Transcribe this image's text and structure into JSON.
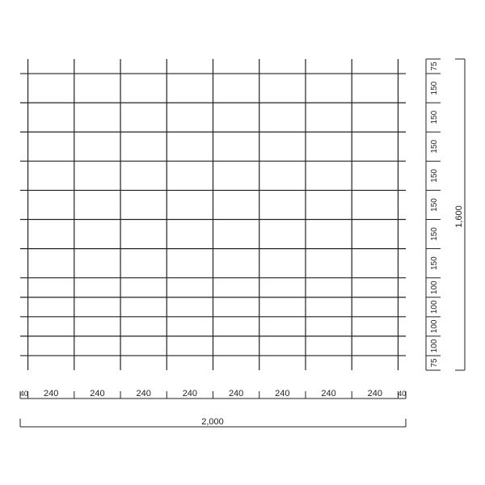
{
  "drawing": {
    "unit": "mm",
    "total_width_label": "2,000",
    "total_height_label": "1,600",
    "horizontal_spacings": [
      40,
      240,
      240,
      240,
      240,
      240,
      240,
      240,
      240,
      40
    ],
    "horizontal_spacing_labels": [
      "40",
      "240",
      "240",
      "240",
      "240",
      "240",
      "240",
      "240",
      "240",
      "40"
    ],
    "vertical_spacings_top_to_bottom": [
      75,
      150,
      150,
      150,
      150,
      150,
      150,
      150,
      100,
      100,
      100,
      100,
      75
    ],
    "vertical_spacing_labels": [
      "75",
      "150",
      "150",
      "150",
      "150",
      "150",
      "150",
      "150",
      "100",
      "100",
      "100",
      "100",
      "75"
    ],
    "line_color": "#222222"
  }
}
